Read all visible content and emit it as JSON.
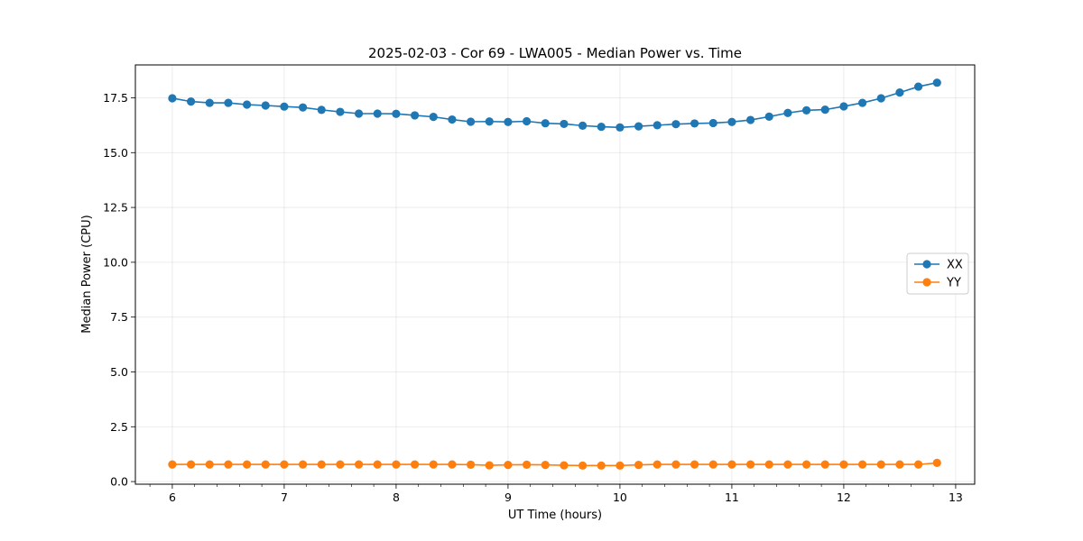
{
  "chart_data": {
    "type": "line",
    "title": "2025-02-03 - Cor 69 - LWA005 - Median Power vs. Time",
    "xlabel": "UT Time (hours)",
    "ylabel": "Median Power (CPU)",
    "xlim": [
      5.67,
      13.17
    ],
    "ylim": [
      -0.12,
      19.0
    ],
    "xticks": [
      6,
      7,
      8,
      9,
      10,
      11,
      12,
      13
    ],
    "yticks": [
      0.0,
      2.5,
      5.0,
      7.5,
      10.0,
      12.5,
      15.0,
      17.5
    ],
    "grid": true,
    "legend_position": "center-right",
    "x": [
      6.0,
      6.1667,
      6.3333,
      6.5,
      6.6667,
      6.8333,
      7.0,
      7.1667,
      7.3333,
      7.5,
      7.6667,
      7.8333,
      8.0,
      8.1667,
      8.3333,
      8.5,
      8.6667,
      8.8333,
      9.0,
      9.1667,
      9.3333,
      9.5,
      9.6667,
      9.8333,
      10.0,
      10.1667,
      10.3333,
      10.5,
      10.6667,
      10.8333,
      11.0,
      11.1667,
      11.3333,
      11.5,
      11.6667,
      11.8333,
      12.0,
      12.1667,
      12.3333,
      12.5,
      12.6667,
      12.8333
    ],
    "series": [
      {
        "name": "XX",
        "color": "#1f77b4",
        "values": [
          17.48,
          17.33,
          17.27,
          17.27,
          17.19,
          17.15,
          17.1,
          17.06,
          16.95,
          16.86,
          16.78,
          16.78,
          16.77,
          16.7,
          16.63,
          16.51,
          16.41,
          16.42,
          16.4,
          16.43,
          16.34,
          16.31,
          16.23,
          16.18,
          16.15,
          16.2,
          16.25,
          16.3,
          16.33,
          16.35,
          16.4,
          16.49,
          16.64,
          16.81,
          16.93,
          16.96,
          17.11,
          17.27,
          17.48,
          17.74,
          18.01,
          18.19
        ]
      },
      {
        "name": "YY",
        "color": "#ff7f0e",
        "values": [
          0.78,
          0.78,
          0.78,
          0.78,
          0.78,
          0.78,
          0.78,
          0.78,
          0.78,
          0.78,
          0.78,
          0.78,
          0.78,
          0.78,
          0.78,
          0.78,
          0.77,
          0.74,
          0.76,
          0.77,
          0.76,
          0.74,
          0.73,
          0.73,
          0.73,
          0.76,
          0.78,
          0.78,
          0.78,
          0.78,
          0.78,
          0.78,
          0.78,
          0.78,
          0.78,
          0.78,
          0.78,
          0.78,
          0.78,
          0.78,
          0.78,
          0.85
        ]
      }
    ]
  }
}
